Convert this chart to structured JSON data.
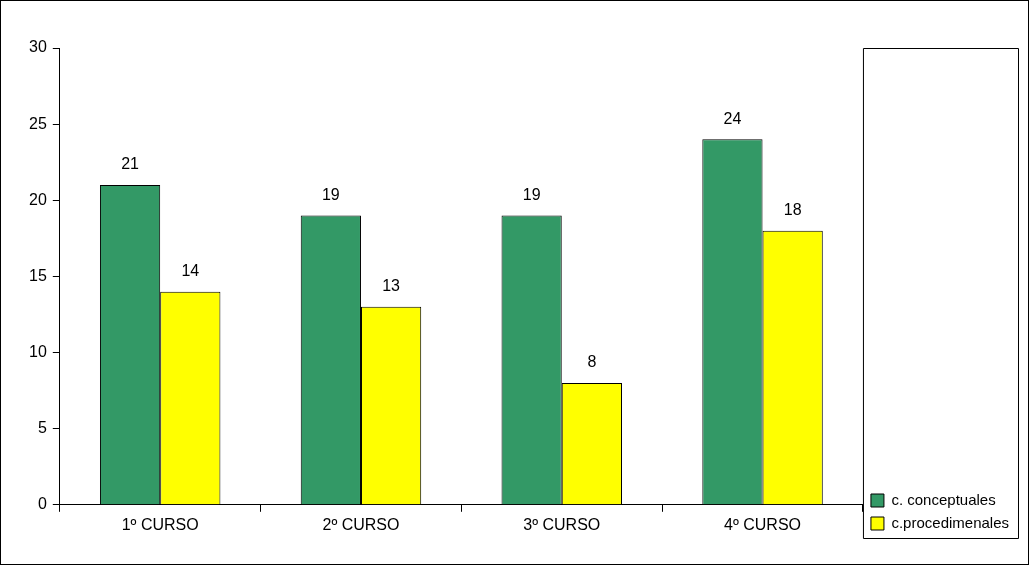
{
  "chart_data": {
    "type": "bar",
    "categories": [
      "1º CURSO",
      "2º CURSO",
      "3º CURSO",
      "4º CURSO"
    ],
    "series": [
      {
        "name": "c. conceptuales",
        "color": "#339966",
        "values": [
          21,
          19,
          19,
          24
        ]
      },
      {
        "name": "c.procedimenales",
        "color": "#ffff00",
        "values": [
          14,
          13,
          8,
          18
        ]
      }
    ],
    "ylim": [
      0,
      30
    ],
    "yticks": [
      0,
      5,
      10,
      15,
      20,
      25,
      30
    ],
    "grid": false,
    "legend": "right",
    "data_labels": true
  }
}
